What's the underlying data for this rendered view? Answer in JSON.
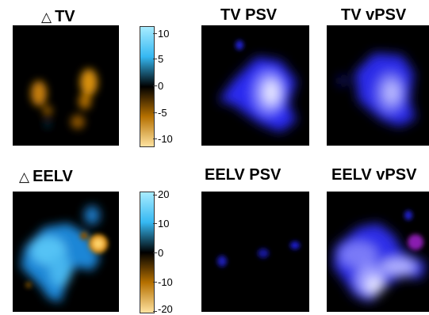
{
  "panels": {
    "dtv": {
      "title_symbol": "△",
      "title_text": "TV"
    },
    "tv_psv": {
      "title": "TV PSV"
    },
    "tv_vpsv": {
      "title": "TV vPSV"
    },
    "deelv": {
      "title_symbol": "△",
      "title_text": "EELV"
    },
    "eelv_psv": {
      "title": "EELV PSV"
    },
    "eelv_vpsv": {
      "title": "EELV vPSV"
    }
  },
  "colorbar_tv": {
    "ticks": [
      "10",
      "5",
      "0",
      "-5",
      "-10"
    ],
    "colors": {
      "high": "#9be4ff",
      "mid_high": "#1aa0e6",
      "zero": "#000000",
      "mid_low": "#c07a00",
      "low": "#ffe08a"
    }
  },
  "colorbar_eelv": {
    "ticks": [
      "20",
      "10",
      "0",
      "-10",
      "-20"
    ]
  }
}
